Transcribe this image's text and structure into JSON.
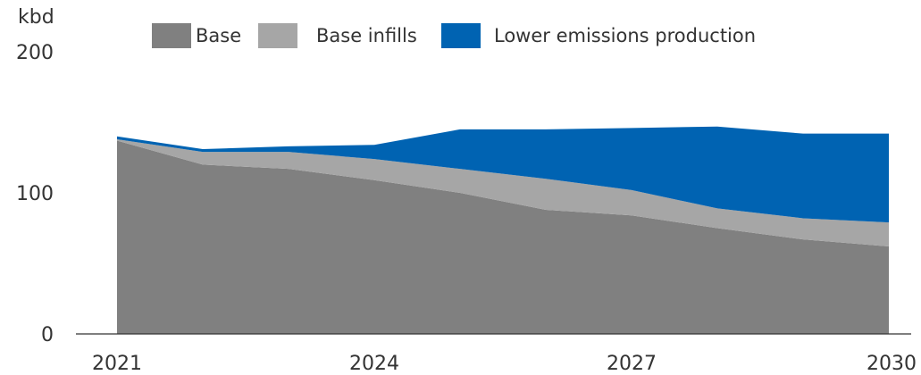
{
  "chart_data": {
    "type": "area",
    "stacked": true,
    "title": "",
    "unit": "kbd",
    "x": [
      2021,
      2022,
      2023,
      2024,
      2025,
      2026,
      2027,
      2028,
      2029,
      2030
    ],
    "x_tick_labels": [
      "2021",
      "2024",
      "2027",
      "2030"
    ],
    "y_tick_labels": [
      "0",
      "100",
      "200"
    ],
    "ylim": [
      0,
      200
    ],
    "grid": false,
    "legend_position": "top",
    "series": [
      {
        "name": "Base",
        "color": "#808080",
        "values": [
          137,
          120,
          117,
          109,
          100,
          88,
          84,
          75,
          67,
          62
        ]
      },
      {
        "name": "Base infills",
        "color": "#a6a6a6",
        "values": [
          1,
          9,
          12,
          15,
          17,
          22,
          18,
          14,
          15,
          17
        ]
      },
      {
        "name": "Lower emissions production",
        "color": "#0063b2",
        "values": [
          2,
          2,
          4,
          10,
          28,
          35,
          44,
          58,
          60,
          63
        ]
      }
    ]
  }
}
